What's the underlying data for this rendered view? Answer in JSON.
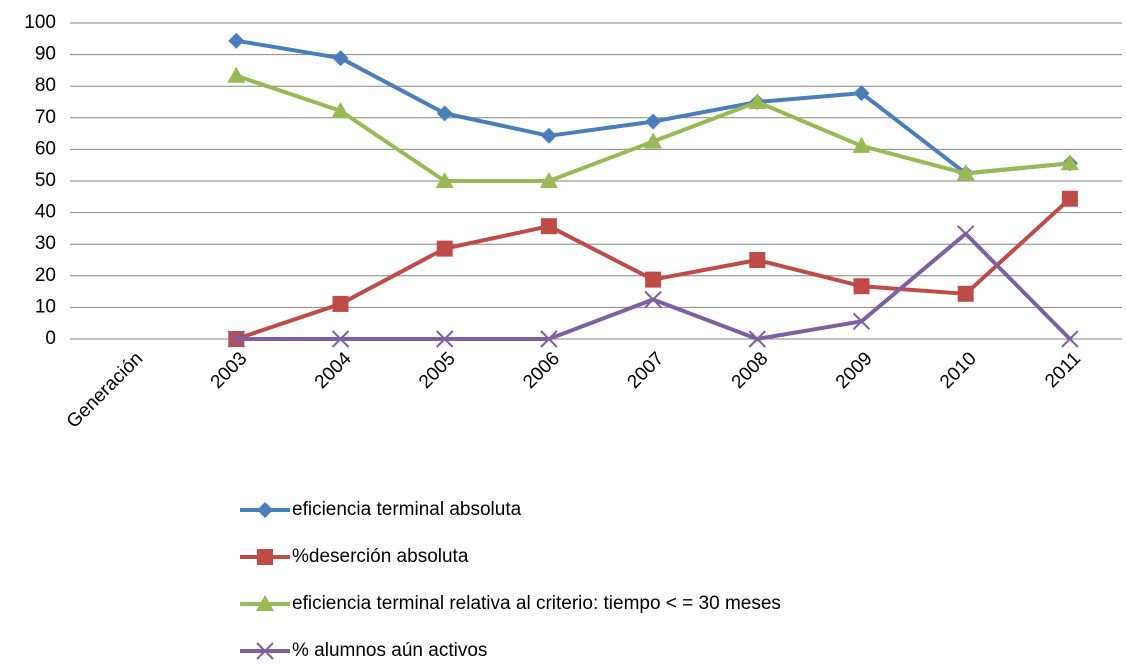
{
  "chart_data": {
    "type": "line",
    "categories": [
      "Generación",
      "2003",
      "2004",
      "2005",
      "2006",
      "2007",
      "2008",
      "2009",
      "2010",
      "2011"
    ],
    "series": [
      {
        "name": "eficiencia terminal absoluta",
        "color": "#4a7ebb",
        "marker": "diamond",
        "values": [
          null,
          94.4,
          88.9,
          71.4,
          64.3,
          68.8,
          75,
          77.8,
          52.4,
          55.6
        ]
      },
      {
        "name": "%deserción absoluta",
        "color": "#be4b48",
        "marker": "square",
        "values": [
          null,
          0,
          11.1,
          28.6,
          35.7,
          18.8,
          25,
          16.7,
          14.3,
          44.4
        ]
      },
      {
        "name": "eficiencia terminal relativa al criterio: tiempo < = 30 meses",
        "color": "#98b954",
        "marker": "triangle",
        "values": [
          null,
          83.3,
          72.2,
          50,
          50,
          62.5,
          75,
          61.1,
          52.4,
          55.6
        ]
      },
      {
        "name": "%  alumnos aún activos",
        "color": "#7d60a0",
        "marker": "x",
        "values": [
          null,
          0,
          0,
          0,
          0,
          12.5,
          0,
          5.6,
          33.3,
          0
        ]
      }
    ],
    "ylim": [
      0,
      100
    ],
    "yticks": [
      0,
      10,
      20,
      30,
      40,
      50,
      60,
      70,
      80,
      90,
      100
    ],
    "grid": true,
    "legend": "bottom"
  }
}
